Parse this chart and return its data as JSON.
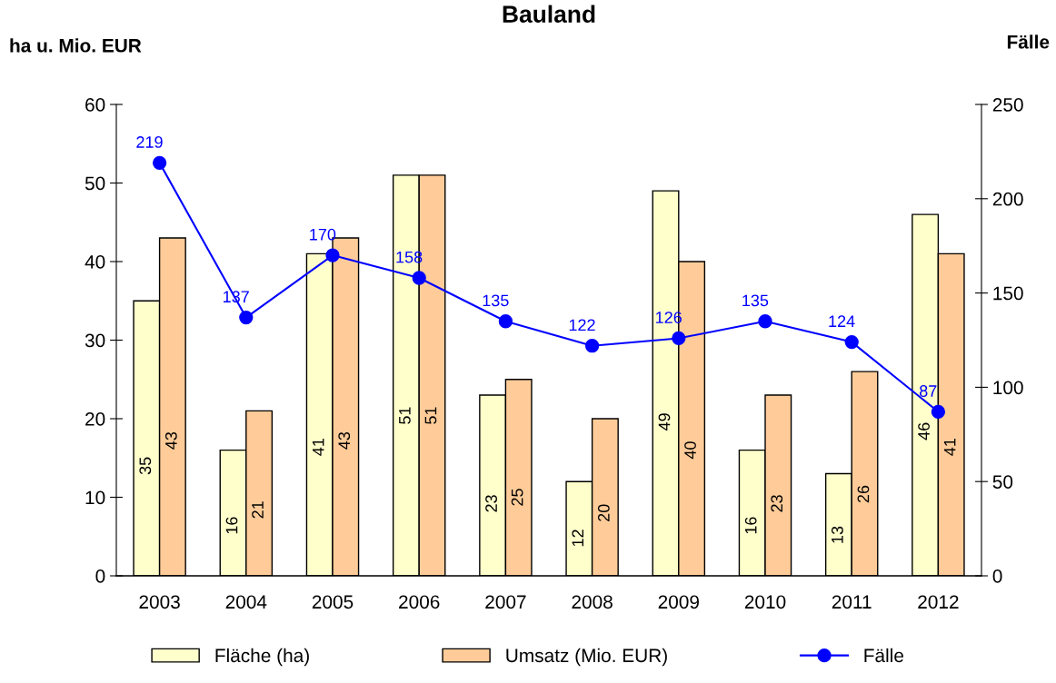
{
  "chart_data": {
    "type": "bar",
    "title": "Bauland",
    "ylabel": "ha u. Mio. EUR",
    "y2label": "Fälle",
    "categories": [
      "2003",
      "2004",
      "2005",
      "2006",
      "2007",
      "2008",
      "2009",
      "2010",
      "2011",
      "2012"
    ],
    "series": [
      {
        "name": "Fläche (ha)",
        "color": "#ffffcc",
        "values": [
          35,
          16,
          41,
          51,
          23,
          12,
          49,
          16,
          13,
          46
        ]
      },
      {
        "name": "Umsatz (Mio. EUR)",
        "color": "#ffcc99",
        "values": [
          43,
          21,
          43,
          51,
          25,
          20,
          40,
          23,
          26,
          41
        ]
      },
      {
        "name": "Fälle",
        "type": "line",
        "axis": "y2",
        "color": "#0000ff",
        "marker": "circle",
        "values": [
          219,
          137,
          170,
          158,
          135,
          122,
          126,
          135,
          124,
          87
        ]
      }
    ],
    "ylim": [
      0,
      60
    ],
    "yticks": [
      0,
      10,
      20,
      30,
      40,
      50,
      60
    ],
    "y2lim": [
      0,
      250
    ],
    "y2ticks": [
      0,
      50,
      100,
      150,
      200,
      250
    ],
    "data_labels": true,
    "legend": "bottom",
    "grid": false
  }
}
